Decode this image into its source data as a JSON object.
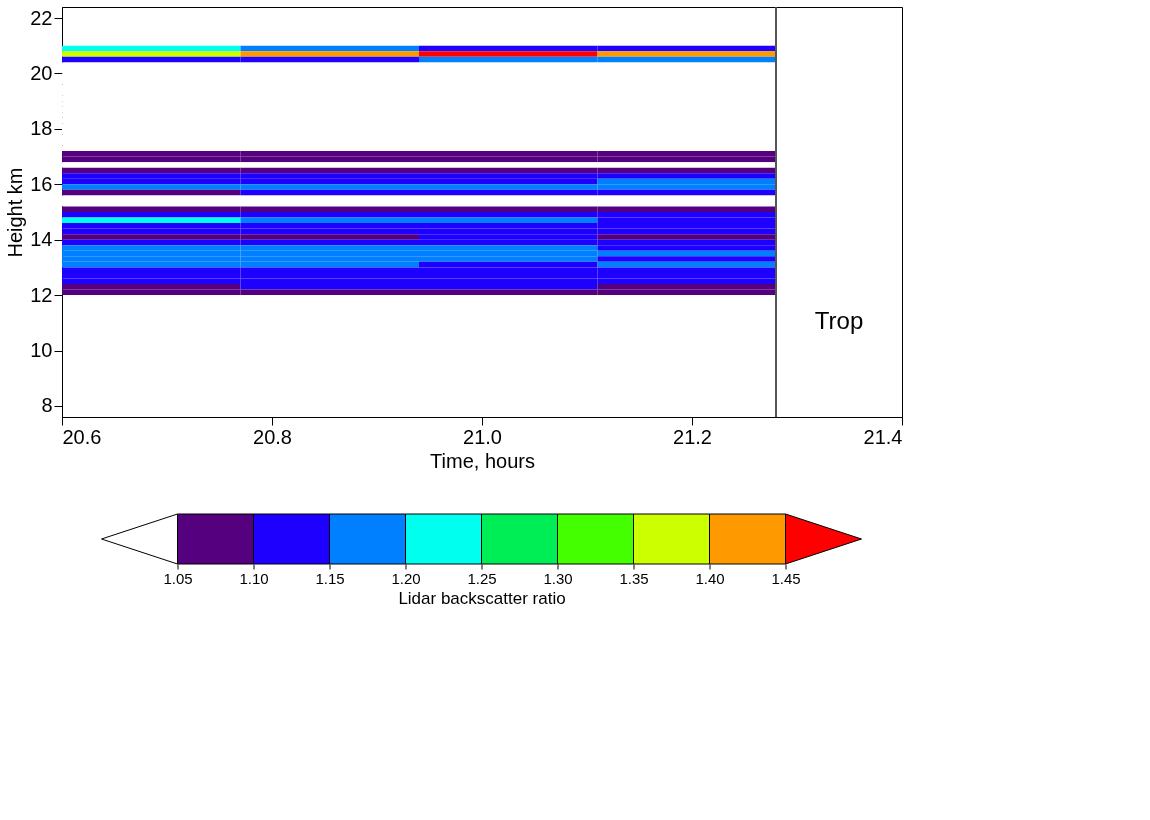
{
  "chart_data": {
    "type": "heatmap",
    "xlabel": "Time, hours",
    "ylabel": "Height km",
    "clabel": "Lidar backscatter ratio",
    "x": [
      20.685,
      20.855,
      21.025,
      21.195
    ],
    "y": [
      20.9,
      20.7,
      20.5,
      20.3,
      20.1,
      19.9,
      19.7,
      19.5,
      19.3,
      19.1,
      18.9,
      18.7,
      18.5,
      18.3,
      18.1,
      17.9,
      17.7,
      17.5,
      17.3,
      17.1,
      16.9,
      16.7,
      16.5,
      16.3,
      16.1,
      15.9,
      15.7,
      15.5,
      15.3,
      15.1,
      14.9,
      14.7,
      14.5,
      14.3,
      14.1,
      13.9,
      13.7,
      13.5,
      13.3,
      13.1,
      12.9,
      12.7,
      12.5,
      12.3,
      12.1
    ],
    "cells": [
      [
        1.225,
        1.175,
        1.125,
        1.125
      ],
      [
        1.375,
        1.425,
        1.475,
        1.425
      ],
      [
        1.125,
        1.125,
        1.175,
        1.175
      ],
      [
        1.025,
        1.025,
        1.025,
        1.025
      ],
      [
        1.025,
        1.025,
        1.025,
        1.025
      ],
      [
        1.025,
        1.025,
        1.025,
        1.025
      ],
      [
        1.025,
        1.025,
        1.025,
        1.025
      ],
      [
        1.025,
        1.025,
        1.025,
        1.025
      ],
      [
        1.025,
        1.025,
        1.025,
        1.025
      ],
      [
        1.025,
        1.025,
        1.025,
        1.025
      ],
      [
        1.025,
        1.025,
        1.025,
        1.025
      ],
      [
        1.025,
        1.025,
        1.025,
        1.025
      ],
      [
        1.025,
        1.025,
        1.025,
        1.025
      ],
      [
        1.025,
        1.025,
        1.025,
        1.025
      ],
      [
        1.025,
        1.025,
        1.025,
        1.025
      ],
      [
        1.025,
        1.025,
        1.025,
        1.025
      ],
      [
        1.025,
        1.025,
        1.025,
        1.025
      ],
      [
        1.025,
        1.025,
        1.025,
        1.025
      ],
      [
        1.025,
        1.025,
        1.025,
        1.025
      ],
      [
        1.075,
        1.075,
        1.075,
        1.075
      ],
      [
        1.075,
        1.075,
        1.075,
        1.075
      ],
      [
        1.025,
        1.025,
        1.025,
        1.025
      ],
      [
        1.075,
        1.075,
        1.075,
        1.075
      ],
      [
        1.125,
        1.125,
        1.125,
        1.125
      ],
      [
        1.125,
        1.125,
        1.125,
        1.175
      ],
      [
        1.175,
        1.175,
        1.175,
        1.175
      ],
      [
        1.075,
        1.125,
        1.125,
        1.125
      ],
      [
        1.025,
        1.025,
        1.025,
        1.025
      ],
      [
        1.025,
        1.025,
        1.025,
        1.025
      ],
      [
        1.075,
        1.075,
        1.075,
        1.075
      ],
      [
        1.125,
        1.125,
        1.125,
        1.125
      ],
      [
        1.225,
        1.175,
        1.175,
        1.125
      ],
      [
        1.125,
        1.125,
        1.125,
        1.125
      ],
      [
        1.125,
        1.125,
        1.125,
        1.125
      ],
      [
        1.075,
        1.075,
        1.125,
        1.075
      ],
      [
        1.125,
        1.125,
        1.125,
        1.125
      ],
      [
        1.175,
        1.175,
        1.175,
        1.125
      ],
      [
        1.175,
        1.175,
        1.175,
        1.175
      ],
      [
        1.175,
        1.175,
        1.175,
        1.125
      ],
      [
        1.175,
        1.175,
        1.125,
        1.175
      ],
      [
        1.125,
        1.125,
        1.125,
        1.125
      ],
      [
        1.125,
        1.125,
        1.125,
        1.125
      ],
      [
        1.125,
        1.125,
        1.125,
        1.125
      ],
      [
        1.075,
        1.125,
        1.125,
        1.075
      ],
      [
        1.075,
        1.075,
        1.075,
        1.075
      ]
    ],
    "colors": [
      "#ffffff",
      "#55007f",
      "#1e00ff",
      "#0080ff",
      "#00ffee",
      "#00ee55",
      "#44ff00",
      "#ccff00",
      "#ff9900",
      "#ff0000"
    ],
    "clim": [
      1.0,
      1.5
    ],
    "cticks": [
      {
        "value": 1.05,
        "label": "1.05"
      },
      {
        "value": 1.1,
        "label": "1.10"
      },
      {
        "value": 1.15,
        "label": "1.15"
      },
      {
        "value": 1.2,
        "label": "1.20"
      },
      {
        "value": 1.25,
        "label": "1.25"
      },
      {
        "value": 1.3,
        "label": "1.30"
      },
      {
        "value": 1.35,
        "label": "1.35"
      },
      {
        "value": 1.4,
        "label": "1.40"
      },
      {
        "value": 1.45,
        "label": "1.45"
      }
    ],
    "xlim": [
      20.6,
      21.4
    ],
    "ylim": [
      7.6,
      22.4
    ],
    "xticks": [
      {
        "value": 20.6,
        "label": "20.6"
      },
      {
        "value": 20.8,
        "label": "20.8"
      },
      {
        "value": 21.0,
        "label": "21.0"
      },
      {
        "value": 21.2,
        "label": "21.2"
      },
      {
        "value": 21.4,
        "label": "21.4"
      }
    ],
    "yticks": [
      8,
      10,
      12,
      14,
      16,
      18,
      20,
      22
    ],
    "ref_lines": [
      {
        "axis": "x",
        "value": 21.28,
        "color": "#555555"
      }
    ],
    "annotations": [
      "Trop"
    ],
    "grid": false
  }
}
